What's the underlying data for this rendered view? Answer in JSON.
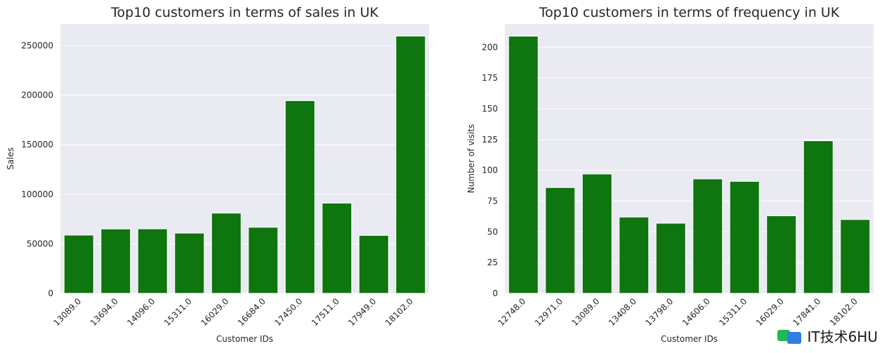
{
  "colors": {
    "bar": "#0f750f",
    "plot_bg": "#eaeaf2",
    "grid": "#ffffff"
  },
  "watermark": {
    "text": "IT技术6HU",
    "icon": "logo-icon"
  },
  "chart_data": [
    {
      "type": "bar",
      "title": "Top10 customers in terms of sales in UK",
      "xlabel": "Customer IDs",
      "ylabel": "Sales",
      "categories": [
        "13089.0",
        "13694.0",
        "14096.0",
        "15311.0",
        "16029.0",
        "16684.0",
        "17450.0",
        "17511.0",
        "17949.0",
        "18102.0"
      ],
      "values": [
        58800,
        65000,
        65100,
        60800,
        81000,
        66700,
        194500,
        91100,
        58500,
        259700
      ],
      "ylim": [
        0,
        272000
      ],
      "yticks": [
        0,
        50000,
        100000,
        150000,
        200000,
        250000
      ],
      "grid": true,
      "xtick_rotation": -45
    },
    {
      "type": "bar",
      "title": "Top10 customers in terms of frequency in UK",
      "xlabel": "Customer IDs",
      "ylabel": "Number of visits",
      "categories": [
        "12748.0",
        "12971.0",
        "13089.0",
        "13408.0",
        "13798.0",
        "14606.0",
        "15311.0",
        "16029.0",
        "17841.0",
        "18102.0"
      ],
      "values": [
        209,
        86,
        97,
        62,
        57,
        93,
        91,
        63,
        124,
        60
      ],
      "ylim": [
        0,
        219
      ],
      "yticks": [
        0,
        25,
        50,
        75,
        100,
        125,
        150,
        175,
        200
      ],
      "grid": true,
      "xtick_rotation": -45
    }
  ]
}
